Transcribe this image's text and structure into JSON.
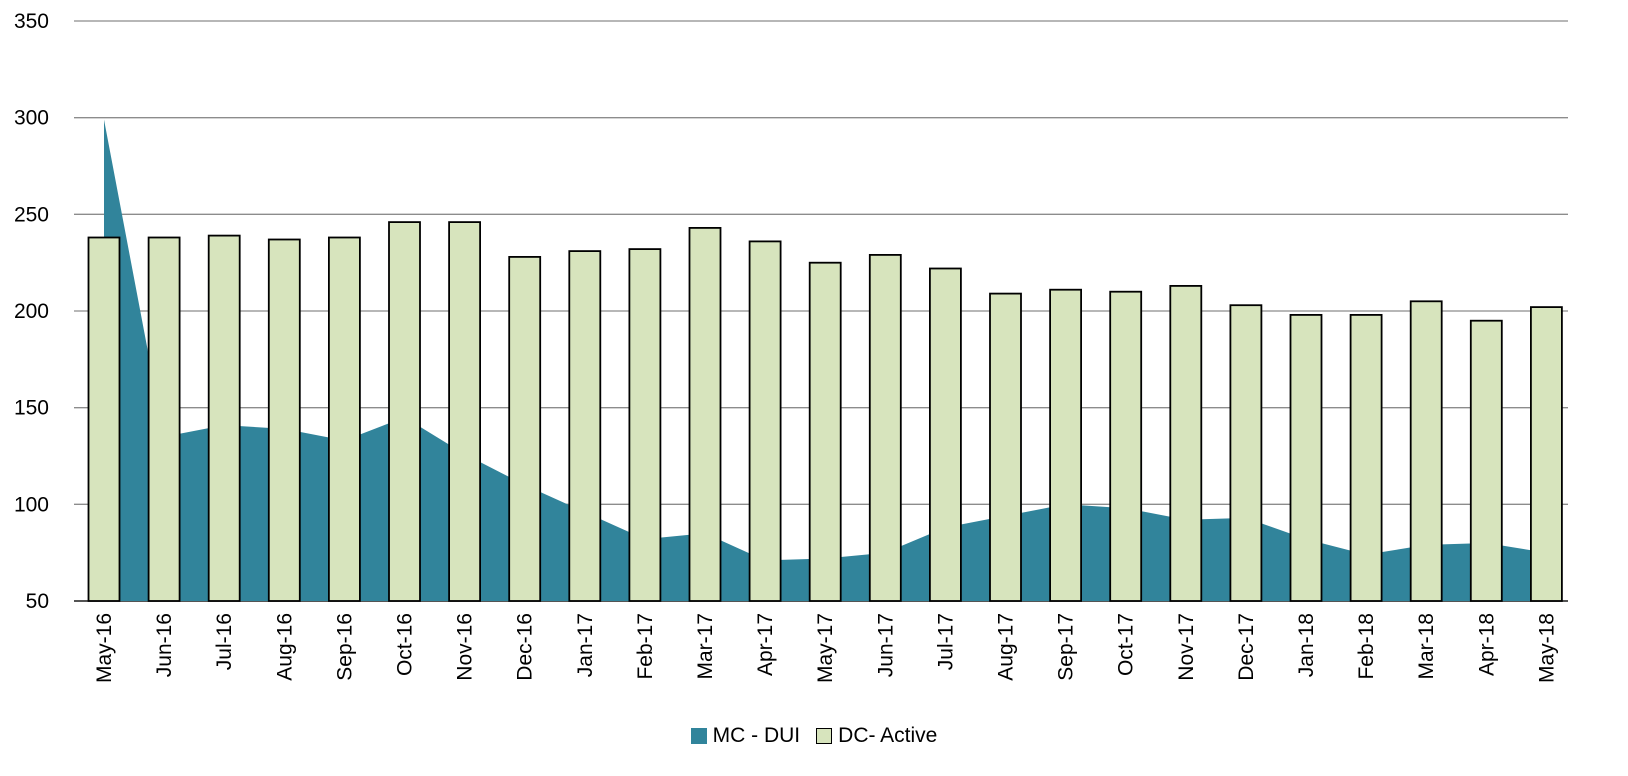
{
  "chart_data": {
    "type": "bar",
    "categories": [
      "May-16",
      "Jun-16",
      "Jul-16",
      "Aug-16",
      "Sep-16",
      "Oct-16",
      "Nov-16",
      "Dec-16",
      "Jan-17",
      "Feb-17",
      "Mar-17",
      "Apr-17",
      "May-17",
      "Jun-17",
      "Jul-17",
      "Aug-17",
      "Sep-17",
      "Oct-17",
      "Nov-17",
      "Dec-17",
      "Jan-18",
      "Feb-18",
      "Mar-18",
      "Apr-18",
      "May-18"
    ],
    "series": [
      {
        "name": "MC - DUI",
        "kind": "area",
        "color": "#31849b",
        "values": [
          299,
          135,
          141,
          139,
          133,
          145,
          126,
          110,
          96,
          82,
          85,
          71,
          72,
          75,
          88,
          94,
          100,
          98,
          92,
          93,
          82,
          74,
          79,
          80,
          75
        ]
      },
      {
        "name": "DC- Active",
        "kind": "bar",
        "color": "#d7e4bd",
        "values": [
          238,
          238,
          239,
          237,
          238,
          246,
          246,
          228,
          231,
          232,
          243,
          236,
          225,
          229,
          222,
          209,
          211,
          210,
          213,
          203,
          198,
          198,
          205,
          195,
          202
        ]
      }
    ],
    "y_ticks": [
      50,
      100,
      150,
      200,
      250,
      300,
      350
    ],
    "ylim": [
      50,
      350
    ],
    "grid": true,
    "legend_position": "bottom"
  }
}
